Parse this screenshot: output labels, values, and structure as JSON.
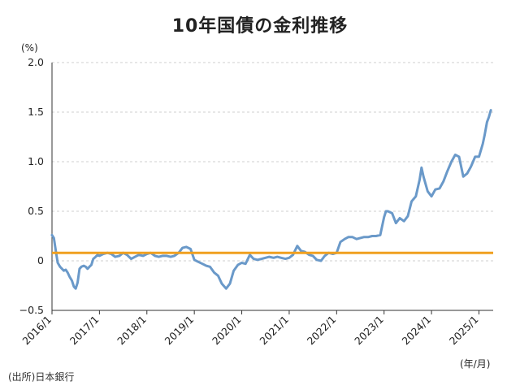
{
  "chart_data": {
    "type": "line",
    "title": "10年国債の金利推移",
    "ylabel": "(%)",
    "xlabel": "(年/月)",
    "ylim": [
      -0.5,
      2.0
    ],
    "yticks": [
      "2.0",
      "1.5",
      "1.0",
      "0.5",
      "0",
      "−0.5"
    ],
    "yticks_values": [
      2.0,
      1.5,
      1.0,
      0.5,
      0,
      -0.5
    ],
    "xticks": [
      "2016/1",
      "2017/1",
      "2018/1",
      "2019/1",
      "2020/1",
      "2021/1",
      "2022/1",
      "2023/1",
      "2024/1",
      "2025/1"
    ],
    "xlim": [
      2016.0,
      2025.3
    ],
    "grid": "horizontal dashed",
    "line_color": "#6a99c9",
    "reference_color": "#f0a020",
    "reference_value": 0.08,
    "series": [
      {
        "x": [
          2016.0,
          2016.04,
          2016.08,
          2016.12,
          2016.17,
          2016.21,
          2016.25,
          2016.29,
          2016.33,
          2016.37,
          2016.42,
          2016.46,
          2016.5,
          2016.54,
          2016.58,
          2016.62,
          2016.67,
          2016.71,
          2016.75,
          2016.79,
          2016.83,
          2016.87,
          2016.92,
          2016.96,
          2017.0,
          2017.08,
          2017.17,
          2017.25,
          2017.33,
          2017.42,
          2017.5,
          2017.58,
          2017.67,
          2017.75,
          2017.83,
          2017.92,
          2018.0,
          2018.08,
          2018.17,
          2018.25,
          2018.33,
          2018.42,
          2018.5,
          2018.58,
          2018.67,
          2018.75,
          2018.83,
          2018.92,
          2019.0,
          2019.08,
          2019.17,
          2019.25,
          2019.33,
          2019.42,
          2019.5,
          2019.58,
          2019.67,
          2019.75,
          2019.83,
          2019.92,
          2020.0,
          2020.08,
          2020.17,
          2020.25,
          2020.33,
          2020.42,
          2020.5,
          2020.58,
          2020.67,
          2020.75,
          2020.83,
          2020.92,
          2021.0,
          2021.08,
          2021.17,
          2021.25,
          2021.33,
          2021.42,
          2021.5,
          2021.58,
          2021.67,
          2021.75,
          2021.83,
          2021.92,
          2022.0,
          2022.08,
          2022.17,
          2022.25,
          2022.33,
          2022.42,
          2022.5,
          2022.58,
          2022.67,
          2022.75,
          2022.83,
          2022.92,
          2023.0,
          2023.04,
          2023.08,
          2023.17,
          2023.25,
          2023.33,
          2023.42,
          2023.5,
          2023.58,
          2023.67,
          2023.75,
          2023.79,
          2023.83,
          2023.92,
          2024.0,
          2024.08,
          2024.17,
          2024.25,
          2024.33,
          2024.42,
          2024.5,
          2024.58,
          2024.67,
          2024.75,
          2024.83,
          2024.92,
          2025.0,
          2025.08,
          2025.12,
          2025.17,
          2025.21,
          2025.25
        ],
        "y": [
          0.26,
          0.23,
          0.1,
          -0.02,
          -0.06,
          -0.08,
          -0.1,
          -0.09,
          -0.12,
          -0.16,
          -0.2,
          -0.26,
          -0.28,
          -0.22,
          -0.08,
          -0.06,
          -0.05,
          -0.06,
          -0.08,
          -0.06,
          -0.04,
          0.02,
          0.04,
          0.06,
          0.05,
          0.07,
          0.08,
          0.07,
          0.04,
          0.05,
          0.08,
          0.06,
          0.02,
          0.04,
          0.06,
          0.05,
          0.07,
          0.08,
          0.05,
          0.04,
          0.05,
          0.05,
          0.04,
          0.05,
          0.08,
          0.13,
          0.14,
          0.12,
          0.01,
          -0.01,
          -0.03,
          -0.05,
          -0.06,
          -0.12,
          -0.15,
          -0.23,
          -0.28,
          -0.23,
          -0.1,
          -0.04,
          -0.02,
          -0.03,
          0.06,
          0.02,
          0.01,
          0.02,
          0.03,
          0.04,
          0.03,
          0.04,
          0.03,
          0.02,
          0.03,
          0.06,
          0.15,
          0.1,
          0.09,
          0.06,
          0.05,
          0.01,
          0.0,
          0.05,
          0.08,
          0.07,
          0.08,
          0.19,
          0.22,
          0.24,
          0.24,
          0.22,
          0.23,
          0.24,
          0.24,
          0.25,
          0.25,
          0.26,
          0.44,
          0.5,
          0.5,
          0.48,
          0.38,
          0.43,
          0.4,
          0.45,
          0.6,
          0.65,
          0.82,
          0.94,
          0.85,
          0.7,
          0.65,
          0.72,
          0.73,
          0.8,
          0.9,
          1.0,
          1.07,
          1.05,
          0.85,
          0.88,
          0.95,
          1.05,
          1.05,
          1.18,
          1.27,
          1.4,
          1.45,
          1.52
        ]
      }
    ]
  },
  "source": "(出所)日本銀行"
}
